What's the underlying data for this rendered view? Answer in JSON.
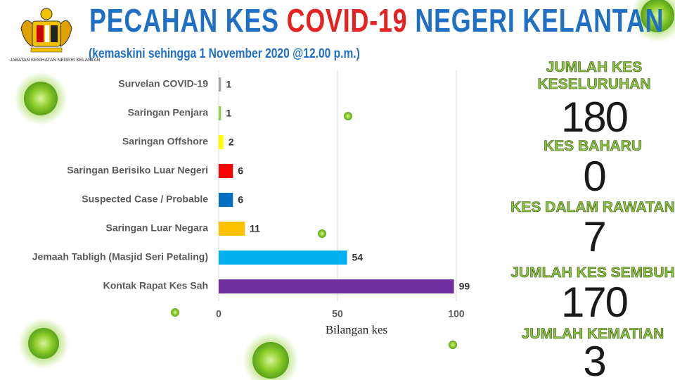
{
  "header": {
    "title_parts": [
      "PECAHAN KES",
      "COVID-19",
      "NEGERI KELANTAN"
    ],
    "subtitle": "(kemaskini sehingga 1 November 2020 @12.00 p.m.)",
    "logo_text": "JABATAN KESIHATAN NEGERI KELANTAN"
  },
  "chart_data": {
    "type": "bar",
    "orientation": "horizontal",
    "categories": [
      "Survelan COVID-19",
      "Saringan Penjara",
      "Saringan Offshore",
      "Saringan Berisiko Luar Negeri",
      "Suspected Case / Probable",
      "Saringan Luar Negara",
      "Jemaah Tabligh (Masjid Seri Petaling)",
      "Kontak Rapat Kes Sah"
    ],
    "values": [
      1,
      1,
      2,
      6,
      6,
      11,
      54,
      99
    ],
    "colors": [
      "#a6a6a6",
      "#92d050",
      "#ffff00",
      "#ff0000",
      "#0070c0",
      "#ffc000",
      "#00b0f0",
      "#7030a0"
    ],
    "xlim": [
      0,
      100
    ],
    "xticks": [
      0,
      50,
      100
    ],
    "x_label": "Bilangan kes",
    "grid": true
  },
  "stats": [
    {
      "label": "JUMLAH KES KESELURUHAN",
      "value": "180"
    },
    {
      "label": "KES BAHARU",
      "value": "0"
    },
    {
      "label": "KES DALAM RAWATAN",
      "value": "7"
    },
    {
      "label": "JUMLAH KES SEMBUH",
      "value": "170"
    },
    {
      "label": "JUMLAH KEMATIAN",
      "value": "3"
    }
  ]
}
